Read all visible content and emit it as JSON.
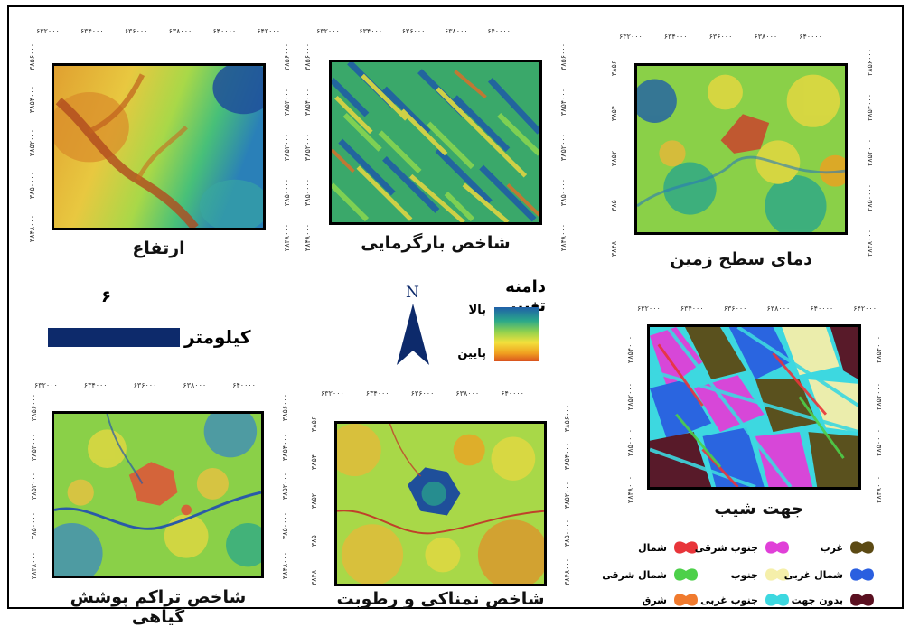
{
  "panels": {
    "elevation": {
      "title": "ارتفاع",
      "ticks_x": [
        "۶۳۲۰۰۰",
        "۶۳۴۰۰۰",
        "۶۳۶۰۰۰",
        "۶۳۸۰۰۰",
        "۶۴۰۰۰۰",
        "۶۴۲۰۰۰"
      ],
      "ticks_y": [
        "۳۸۵۶۰۰۰",
        "۳۸۵۴۰۰۰",
        "۳۸۵۲۰۰۰",
        "۳۸۵۰۰۰۰",
        "۳۸۴۸۰۰۰"
      ]
    },
    "heatload": {
      "title": "شاخص بارگرمایی",
      "ticks_x": [
        "۶۳۲۰۰۰",
        "۶۳۴۰۰۰",
        "۶۳۶۰۰۰",
        "۶۳۸۰۰۰",
        "۶۴۰۰۰۰"
      ],
      "ticks_y": [
        "۳۸۵۶۰۰۰",
        "۳۸۵۴۰۰۰",
        "۳۸۵۲۰۰۰",
        "۳۸۵۰۰۰۰",
        "۳۸۴۸۰۰۰"
      ]
    },
    "lst": {
      "title": "دمای سطح زمین",
      "ticks_x": [
        "۶۳۲۰۰۰",
        "۶۳۴۰۰۰",
        "۶۳۶۰۰۰",
        "۶۳۸۰۰۰",
        "۶۴۰۰۰۰"
      ],
      "ticks_y": [
        "۳۸۵۶۰۰۰",
        "۳۸۵۴۰۰۰",
        "۳۸۵۲۰۰۰",
        "۳۸۵۰۰۰۰",
        "۳۸۴۸۰۰۰"
      ]
    },
    "vegetation": {
      "title": "شاخص تراکم پوشش گیاهی",
      "ticks_x": [
        "۶۳۲۰۰۰",
        "۶۳۴۰۰۰",
        "۶۳۶۰۰۰",
        "۶۳۸۰۰۰",
        "۶۴۰۰۰۰"
      ],
      "ticks_y": [
        "۳۸۵۶۰۰۰",
        "۳۸۵۴۰۰۰",
        "۳۸۵۲۰۰۰",
        "۳۸۵۰۰۰۰",
        "۳۸۴۸۰۰۰"
      ]
    },
    "moisture": {
      "title": "شاخص نمناکی و رطوبت",
      "ticks_x": [
        "۶۳۲۰۰۰",
        "۶۳۴۰۰۰",
        "۶۳۶۰۰۰",
        "۶۳۸۰۰۰",
        "۶۴۰۰۰۰"
      ],
      "ticks_y": [
        "۳۸۵۶۰۰۰",
        "۳۸۵۴۰۰۰",
        "۳۸۵۲۰۰۰",
        "۳۸۵۰۰۰۰",
        "۳۸۴۸۰۰۰"
      ]
    },
    "aspect": {
      "title": "جهت شیب",
      "ticks_x": [
        "۶۳۲۰۰۰",
        "۶۳۴۰۰۰",
        "۶۳۶۰۰۰",
        "۶۳۸۰۰۰",
        "۶۴۰۰۰۰",
        "۶۴۲۰۰۰"
      ],
      "ticks_y": [
        "۳۸۵۴۰۰۰",
        "۳۸۵۲۰۰۰",
        "۳۸۵۰۰۰۰",
        "۳۸۴۸۰۰۰"
      ]
    }
  },
  "scale": {
    "value": "۶",
    "unit": "کیلومتر",
    "color": "#0d2a6b"
  },
  "north": {
    "letter": "N",
    "color": "#0d2a6b"
  },
  "range_legend": {
    "title": "دامنه تغییر",
    "high": "بالا",
    "low": "پایین",
    "colors": [
      "#1f5fa8",
      "#2aa88a",
      "#8fd14f",
      "#f2e13c",
      "#f0a020",
      "#d9531e"
    ]
  },
  "aspect_legend": [
    {
      "label": "شمال",
      "color": "#e8353a"
    },
    {
      "label": "جنوب شرقی",
      "color": "#e040d8"
    },
    {
      "label": "غرب",
      "color": "#5c4a14"
    },
    {
      "label": "شمال شرقی",
      "color": "#4dd04a"
    },
    {
      "label": "جنوب",
      "color": "#f5efaa"
    },
    {
      "label": "شمال غربی",
      "color": "#2a5fe0"
    },
    {
      "label": "شرق",
      "color": "#f07a2e"
    },
    {
      "label": "جنوب غربی",
      "color": "#3dd8e0"
    },
    {
      "label": "بدون جهت",
      "color": "#5a1020"
    }
  ]
}
